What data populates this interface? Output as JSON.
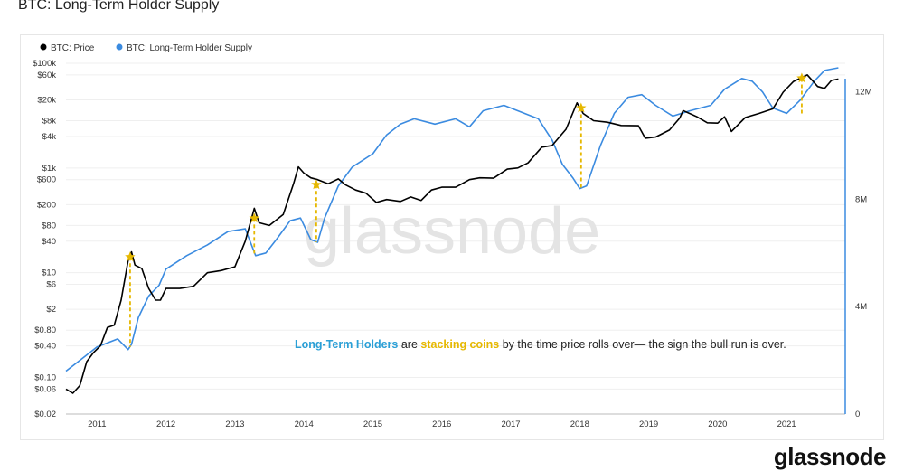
{
  "title": "BTC: Long-Term Holder Supply",
  "watermark": "glassnode",
  "brand": "glassnode",
  "colors": {
    "price": "#000000",
    "supply": "#3b8be0",
    "star": "#e6b800",
    "ann_blue": "#2a9fd6",
    "ann_gold": "#e6b800"
  },
  "chart_data": {
    "type": "line",
    "title": "BTC: Long-Term Holder Supply",
    "legend": [
      "BTC: Price",
      "BTC: Long-Term Holder Supply"
    ],
    "legend_position": "top-left",
    "x_ticks": [
      "2011",
      "2012",
      "2013",
      "2014",
      "2015",
      "2016",
      "2017",
      "2018",
      "2019",
      "2020",
      "2021"
    ],
    "y_left_scale": "log",
    "y_left_range": [
      0.02,
      100000
    ],
    "y_left_ticks": [
      "$100k",
      "$60k",
      "$20k",
      "$8k",
      "$4k",
      "$1k",
      "$600",
      "$200",
      "$80",
      "$40",
      "$10",
      "$6",
      "$2",
      "$0.80",
      "$0.40",
      "$0.10",
      "$0.06",
      "$0.02"
    ],
    "y_left_tick_values": [
      100000,
      60000,
      20000,
      8000,
      4000,
      1000,
      600,
      200,
      80,
      40,
      10,
      6,
      2,
      0.8,
      0.4,
      0.1,
      0.06,
      0.02
    ],
    "y_right_range": [
      0,
      13000000
    ],
    "y_right_ticks": [
      "12M",
      "8M",
      "4M",
      "0"
    ],
    "y_right_tick_values": [
      12000000,
      8000000,
      4000000,
      0
    ],
    "annotation": {
      "part1": "Long-Term Holders",
      "part2": " are ",
      "part3": "stacking coins",
      "part4": " by the time price rolls over— the sign the bull run is over."
    },
    "series": [
      {
        "name": "BTC: Price",
        "points": [
          [
            2010.55,
            0.06
          ],
          [
            2010.65,
            0.05
          ],
          [
            2010.75,
            0.07
          ],
          [
            2010.85,
            0.2
          ],
          [
            2010.95,
            0.3
          ],
          [
            2011.05,
            0.4
          ],
          [
            2011.15,
            0.9
          ],
          [
            2011.25,
            1
          ],
          [
            2011.35,
            3
          ],
          [
            2011.45,
            17
          ],
          [
            2011.5,
            25
          ],
          [
            2011.55,
            14
          ],
          [
            2011.65,
            12
          ],
          [
            2011.75,
            5
          ],
          [
            2011.85,
            3
          ],
          [
            2011.92,
            3
          ],
          [
            2012.0,
            5
          ],
          [
            2012.2,
            5
          ],
          [
            2012.4,
            5.5
          ],
          [
            2012.6,
            10
          ],
          [
            2012.8,
            11
          ],
          [
            2013.0,
            13
          ],
          [
            2013.15,
            40
          ],
          [
            2013.28,
            170
          ],
          [
            2013.35,
            90
          ],
          [
            2013.5,
            80
          ],
          [
            2013.7,
            130
          ],
          [
            2013.85,
            500
          ],
          [
            2013.92,
            1050
          ],
          [
            2014.0,
            800
          ],
          [
            2014.1,
            650
          ],
          [
            2014.2,
            600
          ],
          [
            2014.35,
            500
          ],
          [
            2014.5,
            620
          ],
          [
            2014.6,
            480
          ],
          [
            2014.75,
            380
          ],
          [
            2014.9,
            330
          ],
          [
            2015.05,
            220
          ],
          [
            2015.2,
            250
          ],
          [
            2015.4,
            230
          ],
          [
            2015.55,
            280
          ],
          [
            2015.7,
            240
          ],
          [
            2015.85,
            380
          ],
          [
            2016.0,
            430
          ],
          [
            2016.2,
            430
          ],
          [
            2016.4,
            600
          ],
          [
            2016.55,
            650
          ],
          [
            2016.75,
            640
          ],
          [
            2016.95,
            950
          ],
          [
            2017.1,
            1000
          ],
          [
            2017.25,
            1250
          ],
          [
            2017.45,
            2500
          ],
          [
            2017.6,
            2700
          ],
          [
            2017.8,
            5500
          ],
          [
            2017.96,
            17500
          ],
          [
            2018.05,
            11000
          ],
          [
            2018.2,
            8000
          ],
          [
            2018.4,
            7500
          ],
          [
            2018.6,
            6500
          ],
          [
            2018.85,
            6400
          ],
          [
            2018.95,
            3700
          ],
          [
            2019.1,
            3900
          ],
          [
            2019.3,
            5300
          ],
          [
            2019.45,
            9000
          ],
          [
            2019.5,
            12500
          ],
          [
            2019.7,
            9500
          ],
          [
            2019.85,
            7300
          ],
          [
            2020.0,
            7200
          ],
          [
            2020.1,
            9500
          ],
          [
            2020.2,
            5000
          ],
          [
            2020.4,
            9200
          ],
          [
            2020.6,
            11000
          ],
          [
            2020.8,
            13500
          ],
          [
            2020.95,
            28000
          ],
          [
            2021.1,
            45000
          ],
          [
            2021.3,
            60000
          ],
          [
            2021.45,
            36000
          ],
          [
            2021.55,
            33000
          ],
          [
            2021.65,
            47000
          ],
          [
            2021.75,
            50000
          ]
        ]
      },
      {
        "name": "BTC: Long-Term Holder Supply",
        "points": [
          [
            2010.55,
            1600000
          ],
          [
            2010.75,
            2000000
          ],
          [
            2011.0,
            2500000
          ],
          [
            2011.3,
            2800000
          ],
          [
            2011.45,
            2400000
          ],
          [
            2011.5,
            2600000
          ],
          [
            2011.6,
            3600000
          ],
          [
            2011.75,
            4400000
          ],
          [
            2011.9,
            4800000
          ],
          [
            2012.0,
            5400000
          ],
          [
            2012.3,
            5900000
          ],
          [
            2012.6,
            6300000
          ],
          [
            2012.9,
            6800000
          ],
          [
            2013.15,
            6900000
          ],
          [
            2013.3,
            5900000
          ],
          [
            2013.45,
            6000000
          ],
          [
            2013.6,
            6500000
          ],
          [
            2013.8,
            7200000
          ],
          [
            2013.95,
            7300000
          ],
          [
            2014.1,
            6500000
          ],
          [
            2014.2,
            6400000
          ],
          [
            2014.3,
            7300000
          ],
          [
            2014.5,
            8500000
          ],
          [
            2014.7,
            9200000
          ],
          [
            2015.0,
            9700000
          ],
          [
            2015.2,
            10400000
          ],
          [
            2015.4,
            10800000
          ],
          [
            2015.6,
            11000000
          ],
          [
            2015.9,
            10800000
          ],
          [
            2016.2,
            11000000
          ],
          [
            2016.4,
            10700000
          ],
          [
            2016.6,
            11300000
          ],
          [
            2016.9,
            11500000
          ],
          [
            2017.1,
            11300000
          ],
          [
            2017.4,
            11000000
          ],
          [
            2017.6,
            10200000
          ],
          [
            2017.75,
            9300000
          ],
          [
            2017.9,
            8800000
          ],
          [
            2018.0,
            8400000
          ],
          [
            2018.1,
            8500000
          ],
          [
            2018.3,
            10000000
          ],
          [
            2018.5,
            11200000
          ],
          [
            2018.7,
            11800000
          ],
          [
            2018.9,
            11900000
          ],
          [
            2019.1,
            11500000
          ],
          [
            2019.35,
            11100000
          ],
          [
            2019.6,
            11300000
          ],
          [
            2019.9,
            11500000
          ],
          [
            2020.1,
            12100000
          ],
          [
            2020.35,
            12500000
          ],
          [
            2020.5,
            12400000
          ],
          [
            2020.65,
            12000000
          ],
          [
            2020.8,
            11400000
          ],
          [
            2021.0,
            11200000
          ],
          [
            2021.2,
            11700000
          ],
          [
            2021.4,
            12400000
          ],
          [
            2021.55,
            12800000
          ],
          [
            2021.75,
            12900000
          ]
        ]
      }
    ],
    "markers": [
      {
        "label": "peak-2011",
        "x": 2011.48,
        "price": 20,
        "supply": 2500000
      },
      {
        "label": "peak-2013",
        "x": 2013.28,
        "price": 110,
        "supply": 5900000
      },
      {
        "label": "peak-2014",
        "x": 2014.18,
        "price": 480,
        "supply": 6400000
      },
      {
        "label": "peak-2018",
        "x": 2018.02,
        "price": 14000,
        "supply": 8400000
      },
      {
        "label": "peak-2021",
        "x": 2021.22,
        "price": 52000,
        "supply": 11200000
      }
    ]
  }
}
